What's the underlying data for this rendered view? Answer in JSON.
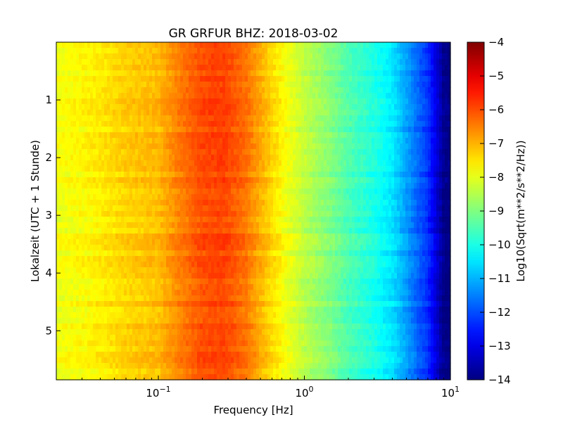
{
  "chart_data": {
    "type": "heatmap",
    "title": "GR GRFUR BHZ: 2018-03-02",
    "xlabel": "Frequency [Hz]",
    "ylabel": "Lokalzeit (UTC + 1 Stunde)",
    "x_scale": "log",
    "xlim": [
      0.02,
      10
    ],
    "ylim": [
      5.85,
      0
    ],
    "x_ticks": [
      {
        "value": 0.1,
        "base": "10",
        "exp": "−1"
      },
      {
        "value": 1,
        "base": "10",
        "exp": "0"
      },
      {
        "value": 10,
        "base": "10",
        "exp": "1"
      }
    ],
    "y_ticks": [
      {
        "value": 1,
        "label": "1"
      },
      {
        "value": 2,
        "label": "2"
      },
      {
        "value": 3,
        "label": "3"
      },
      {
        "value": 4,
        "label": "4"
      },
      {
        "value": 5,
        "label": "5"
      }
    ],
    "colorbar": {
      "label": "Log10(Sqrt(m**2/s**2/Hz))",
      "range": [
        -14,
        -4
      ],
      "colormap": "jet",
      "ticks": [
        {
          "value": -4,
          "label": "−4"
        },
        {
          "value": -5,
          "label": "−5"
        },
        {
          "value": -6,
          "label": "−6"
        },
        {
          "value": -7,
          "label": "−7"
        },
        {
          "value": -8,
          "label": "−8"
        },
        {
          "value": -9,
          "label": "−9"
        },
        {
          "value": -10,
          "label": "−10"
        },
        {
          "value": -11,
          "label": "−11"
        },
        {
          "value": -12,
          "label": "−12"
        },
        {
          "value": -13,
          "label": "−13"
        },
        {
          "value": -14,
          "label": "−14"
        }
      ]
    },
    "spectrum_profile": {
      "frequency_hz": [
        0.02,
        0.04,
        0.06,
        0.1,
        0.14,
        0.2,
        0.28,
        0.4,
        0.6,
        0.8,
        1.0,
        1.5,
        2.0,
        3.0,
        4.0,
        5.0,
        6.0,
        7.0,
        8.0,
        9.0,
        10.0
      ],
      "level": [
        -7.9,
        -7.6,
        -7.3,
        -7.1,
        -6.5,
        -6.0,
        -5.9,
        -6.4,
        -7.4,
        -8.0,
        -8.4,
        -9.0,
        -9.5,
        -10.0,
        -10.5,
        -11.2,
        -11.8,
        -12.3,
        -13.1,
        -13.9,
        -14.0
      ]
    },
    "rows": 60
  }
}
